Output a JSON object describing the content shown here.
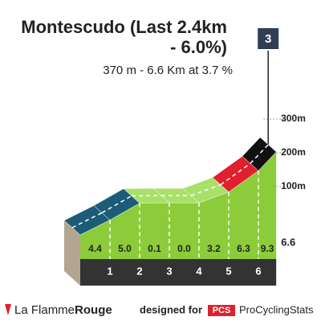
{
  "chart_data": {
    "type": "climb-profile",
    "title_lines": [
      "Montescudo (Last 2.4km",
      "- 6.0%)"
    ],
    "subtitle": "370 m - 6.6 Km at 3.7 %",
    "category_badge": "3",
    "km_marks": [
      1,
      2,
      3,
      4,
      5,
      6
    ],
    "distance": 6.6,
    "values": [
      4.4,
      5,
      0.1,
      0,
      3.2,
      6.3,
      9.3
    ],
    "value_labels": [
      "4.4",
      "5.0",
      "0.1",
      "0.0",
      "3.2",
      "6.3",
      "9.3"
    ],
    "colors": [
      "#1d5c78",
      "#1d5c78",
      "#a8e06a",
      "#a8e06a",
      "#a8e06a",
      "#e0202e",
      "#111111"
    ],
    "face_color": "#8ccc3a",
    "ylim": [
      0,
      350
    ],
    "yticks": [
      {
        "value": 100,
        "label": "100m"
      },
      {
        "value": 200,
        "label": "200m"
      },
      {
        "value": 300,
        "label": "300m"
      }
    ]
  },
  "footer": {
    "brand_a": "La Flamme",
    "brand_b": "Rouge",
    "designed": "designed for",
    "pcs": "PCS",
    "pcs_name": "ProCyclingStats"
  }
}
